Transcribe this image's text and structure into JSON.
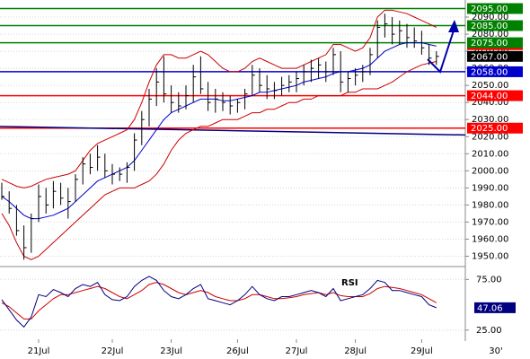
{
  "chart_data": [
    {
      "type": "ohlc",
      "high": [
        1993,
        1988,
        1980,
        1968,
        1975,
        1992,
        1990,
        1994,
        1993,
        1990,
        1998,
        2008,
        2010,
        2015,
        2010,
        2004,
        2002,
        2005,
        2022,
        2035,
        2048,
        2060,
        2067,
        2050,
        2046,
        2050,
        2062,
        2067,
        2052,
        2048,
        2046,
        2044,
        2042,
        2048,
        2062,
        2060,
        2056,
        2052,
        2055,
        2056,
        2058,
        2062,
        2065,
        2066,
        2064,
        2072,
        2070,
        2058,
        2060,
        2062,
        2072,
        2088,
        2092,
        2090,
        2088,
        2086,
        2084,
        2082,
        2074,
        2070
      ],
      "low": [
        1983,
        1975,
        1962,
        1948,
        1952,
        1970,
        1975,
        1978,
        1980,
        1972,
        1982,
        1992,
        1998,
        2000,
        1996,
        1992,
        1994,
        1993,
        2000,
        2015,
        2026,
        2038,
        2040,
        2034,
        2034,
        2036,
        2040,
        2045,
        2035,
        2034,
        2035,
        2033,
        2034,
        2036,
        2044,
        2046,
        2042,
        2042,
        2044,
        2046,
        2046,
        2050,
        2052,
        2054,
        2052,
        2056,
        2046,
        2046,
        2050,
        2052,
        2056,
        2066,
        2078,
        2074,
        2074,
        2072,
        2072,
        2068,
        2062,
        2062
      ],
      "close": [
        1985,
        1978,
        1965,
        1955,
        1972,
        1985,
        1980,
        1988,
        1984,
        1982,
        1995,
        2004,
        2002,
        2008,
        2000,
        1998,
        1998,
        2002,
        2018,
        2030,
        2042,
        2052,
        2045,
        2040,
        2038,
        2044,
        2055,
        2048,
        2040,
        2042,
        2040,
        2038,
        2040,
        2045,
        2056,
        2050,
        2048,
        2047,
        2050,
        2052,
        2054,
        2058,
        2060,
        2062,
        2058,
        2068,
        2052,
        2054,
        2056,
        2058,
        2068,
        2084,
        2086,
        2080,
        2082,
        2078,
        2076,
        2072,
        2066,
        2067
      ],
      "bar_color": "#000000",
      "series": [
        {
          "color": "#cc0000",
          "values": [
            1995,
            1993,
            1991,
            1990,
            1991,
            1993,
            1995,
            1996,
            1997,
            1998,
            2000,
            2006,
            2012,
            2016,
            2018,
            2020,
            2022,
            2024,
            2030,
            2040,
            2052,
            2062,
            2068,
            2068,
            2066,
            2066,
            2068,
            2070,
            2068,
            2064,
            2060,
            2058,
            2058,
            2060,
            2064,
            2066,
            2064,
            2062,
            2060,
            2060,
            2060,
            2062,
            2064,
            2066,
            2068,
            2074,
            2074,
            2072,
            2070,
            2072,
            2078,
            2090,
            2094,
            2094,
            2093,
            2092,
            2090,
            2088,
            2086,
            2084
          ]
        },
        {
          "color": "#cc0000",
          "values": [
            1975,
            1968,
            1958,
            1950,
            1948,
            1950,
            1954,
            1958,
            1962,
            1966,
            1970,
            1974,
            1978,
            1982,
            1986,
            1988,
            1990,
            1990,
            1990,
            1992,
            1994,
            1998,
            2004,
            2012,
            2018,
            2022,
            2024,
            2026,
            2026,
            2028,
            2030,
            2030,
            2030,
            2032,
            2034,
            2034,
            2036,
            2036,
            2038,
            2040,
            2040,
            2042,
            2042,
            2044,
            2044,
            2044,
            2044,
            2046,
            2046,
            2048,
            2048,
            2048,
            2050,
            2052,
            2055,
            2058,
            2060,
            2062,
            2063,
            2064
          ]
        },
        {
          "color": "#0000cc",
          "values": [
            1985,
            1982,
            1978,
            1974,
            1972,
            1972,
            1973,
            1974,
            1976,
            1978,
            1982,
            1986,
            1990,
            1994,
            1996,
            1998,
            2000,
            2002,
            2006,
            2012,
            2018,
            2024,
            2030,
            2034,
            2036,
            2038,
            2040,
            2042,
            2042,
            2042,
            2041,
            2041,
            2042,
            2043,
            2044,
            2046,
            2046,
            2047,
            2048,
            2049,
            2050,
            2052,
            2053,
            2054,
            2055,
            2057,
            2058,
            2058,
            2059,
            2060,
            2062,
            2066,
            2070,
            2072,
            2074,
            2075,
            2075,
            2075,
            2074,
            2073
          ]
        }
      ],
      "trendline": {
        "color": "#000080",
        "values": [
          2026,
          2021
        ]
      },
      "levels": [
        {
          "value": 2095,
          "label": "2095.00",
          "color": "#008000",
          "line": true
        },
        {
          "value": 2085,
          "label": "2085.00",
          "color": "#008000",
          "line": true
        },
        {
          "value": 2073.85,
          "label": "2073.85",
          "color": "#ff0000",
          "line": false
        },
        {
          "value": 2075,
          "label": "2075.00",
          "color": "#008000",
          "line": true
        },
        {
          "value": 2067,
          "label": "2067.00",
          "color": "#000000",
          "line": false
        },
        {
          "value": 2058,
          "label": "2058.00",
          "color": "#0000cc",
          "line": true
        },
        {
          "value": 2044,
          "label": "2044.00",
          "color": "#ff0000",
          "line": true
        },
        {
          "value": 2025,
          "label": "2025.00",
          "color": "#ff0000",
          "line": true
        }
      ],
      "ylim": [
        1945,
        2100
      ],
      "yticks": [
        {
          "value": 1950,
          "label": "1950.00"
        },
        {
          "value": 1960,
          "label": "1960.00"
        },
        {
          "value": 1970,
          "label": "1970.00"
        },
        {
          "value": 1980,
          "label": "1980.00"
        },
        {
          "value": 1990,
          "label": "1990.00"
        },
        {
          "value": 2000,
          "label": "2000.00"
        },
        {
          "value": 2010,
          "label": "2010.00"
        },
        {
          "value": 2020,
          "label": "2020.00"
        },
        {
          "value": 2030,
          "label": "2030.00"
        },
        {
          "value": 2040,
          "label": "2040.00"
        },
        {
          "value": 2050,
          "label": "2050.00"
        },
        {
          "value": 2060,
          "label": "2060.00"
        },
        {
          "value": 2070,
          "label": "2070.00"
        },
        {
          "value": 2080,
          "label": "2080.00"
        },
        {
          "value": 2090,
          "label": "2090.00"
        }
      ],
      "grid": true
    },
    {
      "type": "line",
      "title": "RSI",
      "timeframe": "30'",
      "categories": [
        null,
        null,
        null,
        null,
        null,
        "21Jul",
        null,
        null,
        null,
        null,
        null,
        null,
        null,
        null,
        null,
        "22Jul",
        null,
        null,
        null,
        null,
        null,
        null,
        null,
        "23Jul",
        null,
        null,
        null,
        null,
        null,
        null,
        null,
        null,
        "26Jul",
        null,
        null,
        null,
        null,
        null,
        null,
        null,
        "27Jul",
        null,
        null,
        null,
        null,
        null,
        null,
        null,
        "28Jul",
        null,
        null,
        null,
        null,
        null,
        null,
        null,
        null,
        "29Jul",
        null,
        null
      ],
      "series": [
        {
          "color": "#000080",
          "values": [
            55,
            45,
            35,
            28,
            38,
            60,
            58,
            65,
            62,
            58,
            66,
            70,
            68,
            72,
            60,
            55,
            54,
            58,
            68,
            74,
            78,
            74,
            64,
            58,
            56,
            60,
            66,
            70,
            56,
            54,
            52,
            50,
            54,
            60,
            68,
            60,
            56,
            54,
            58,
            58,
            60,
            62,
            64,
            62,
            58,
            66,
            54,
            56,
            58,
            60,
            66,
            74,
            72,
            64,
            64,
            62,
            60,
            58,
            50,
            47.06
          ]
        },
        {
          "color": "#cc0000",
          "values": [
            52,
            48,
            42,
            36,
            36,
            44,
            50,
            56,
            60,
            60,
            62,
            64,
            66,
            68,
            66,
            62,
            58,
            56,
            60,
            64,
            70,
            72,
            70,
            66,
            62,
            60,
            62,
            64,
            62,
            58,
            56,
            54,
            54,
            56,
            60,
            60,
            58,
            56,
            56,
            57,
            58,
            60,
            61,
            62,
            60,
            62,
            59,
            58,
            58,
            58,
            61,
            66,
            68,
            67,
            66,
            64,
            62,
            60,
            56,
            52
          ]
        }
      ],
      "ylim": [
        16,
        85
      ],
      "yticks": [
        {
          "value": 75,
          "label": "75.00"
        },
        {
          "value": 25,
          "label": "25.00"
        }
      ],
      "grid": true
    }
  ]
}
